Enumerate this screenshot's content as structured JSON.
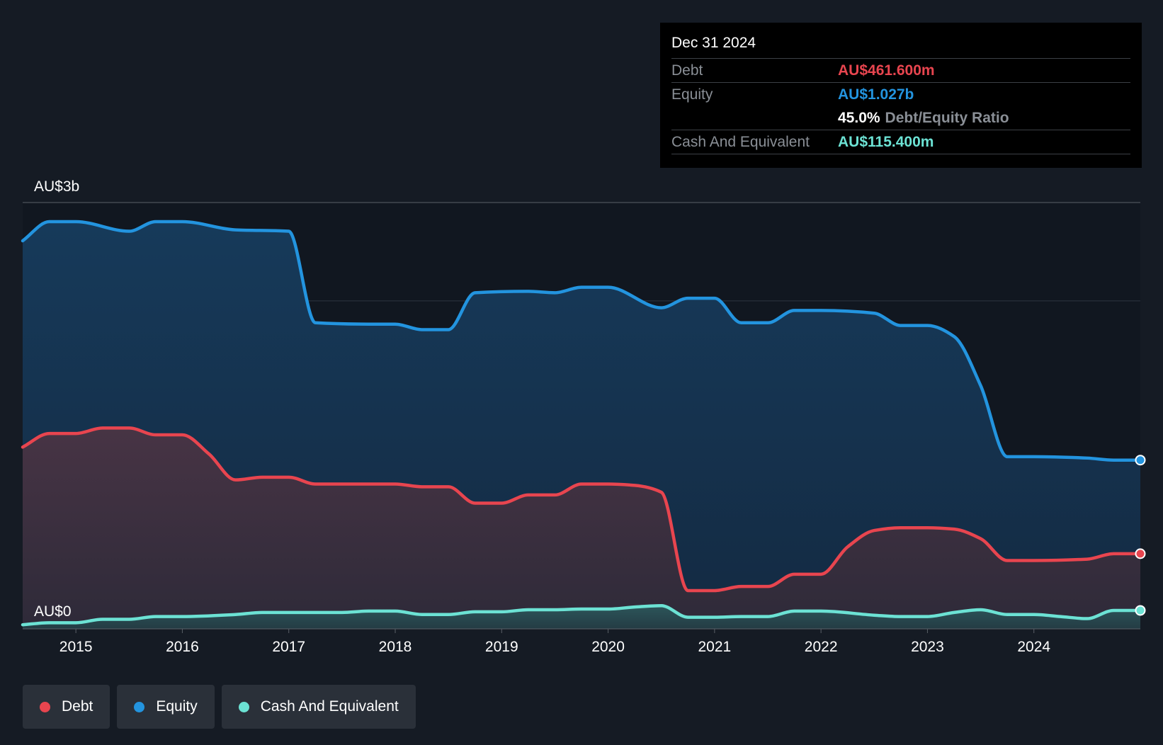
{
  "tooltip": {
    "date": "Dec 31 2024",
    "rows": [
      {
        "label": "Debt",
        "value": "AU$461.600m",
        "color": "#e8454f"
      },
      {
        "label": "Equity",
        "value": "AU$1.027b",
        "color": "#2394df"
      },
      {
        "ratio_value": "45.0%",
        "ratio_label": "Debt/Equity Ratio"
      },
      {
        "label": "Cash And Equivalent",
        "value": "AU$115.400m",
        "color": "#6ce2d4"
      }
    ]
  },
  "legend": [
    {
      "label": "Debt",
      "color": "#e8454f"
    },
    {
      "label": "Equity",
      "color": "#2394df"
    },
    {
      "label": "Cash And Equivalent",
      "color": "#6ce2d4"
    }
  ],
  "chart_data": {
    "type": "area",
    "y_top_label": "AU$3b",
    "y_bottom_label": "AU$0",
    "ylim": [
      0,
      3.12
    ],
    "xlim": [
      2014.5,
      2025.0
    ],
    "x_ticks": [
      2015,
      2016,
      2017,
      2018,
      2019,
      2020,
      2021,
      2022,
      2023,
      2024
    ],
    "x_tick_labels": [
      "2015",
      "2016",
      "2017",
      "2018",
      "2019",
      "2020",
      "2021",
      "2022",
      "2023",
      "2024"
    ],
    "y_gridlines": [
      1.2,
      2.4
    ],
    "grid": true,
    "legend_position": "bottom-left",
    "series": [
      {
        "name": "Equity",
        "color": "#2394df",
        "points": [
          [
            2014.5,
            2.84
          ],
          [
            2014.75,
            2.98
          ],
          [
            2015.0,
            2.98
          ],
          [
            2015.5,
            2.91
          ],
          [
            2015.75,
            2.98
          ],
          [
            2016.0,
            2.98
          ],
          [
            2016.5,
            2.92
          ],
          [
            2017.0,
            2.91
          ],
          [
            2017.25,
            2.24
          ],
          [
            2017.75,
            2.23
          ],
          [
            2018.0,
            2.23
          ],
          [
            2018.25,
            2.19
          ],
          [
            2018.5,
            2.19
          ],
          [
            2018.75,
            2.46
          ],
          [
            2019.25,
            2.47
          ],
          [
            2019.5,
            2.46
          ],
          [
            2019.75,
            2.5
          ],
          [
            2020.0,
            2.5
          ],
          [
            2020.5,
            2.35
          ],
          [
            2020.75,
            2.42
          ],
          [
            2021.0,
            2.42
          ],
          [
            2021.25,
            2.24
          ],
          [
            2021.5,
            2.24
          ],
          [
            2021.75,
            2.33
          ],
          [
            2022.0,
            2.33
          ],
          [
            2022.5,
            2.31
          ],
          [
            2022.75,
            2.22
          ],
          [
            2023.0,
            2.22
          ],
          [
            2023.25,
            2.14
          ],
          [
            2023.5,
            1.78
          ],
          [
            2023.75,
            1.26
          ],
          [
            2024.0,
            1.26
          ],
          [
            2024.5,
            1.25
          ],
          [
            2024.75,
            1.235
          ],
          [
            2025.0,
            1.235
          ]
        ]
      },
      {
        "name": "Debt",
        "color": "#e8454f",
        "points": [
          [
            2014.5,
            1.33
          ],
          [
            2014.75,
            1.43
          ],
          [
            2015.0,
            1.43
          ],
          [
            2015.25,
            1.47
          ],
          [
            2015.5,
            1.47
          ],
          [
            2015.75,
            1.42
          ],
          [
            2016.0,
            1.42
          ],
          [
            2016.25,
            1.28
          ],
          [
            2016.5,
            1.09
          ],
          [
            2016.75,
            1.11
          ],
          [
            2017.0,
            1.11
          ],
          [
            2017.25,
            1.06
          ],
          [
            2017.75,
            1.06
          ],
          [
            2018.0,
            1.06
          ],
          [
            2018.25,
            1.04
          ],
          [
            2018.5,
            1.04
          ],
          [
            2018.75,
            0.92
          ],
          [
            2019.0,
            0.92
          ],
          [
            2019.25,
            0.98
          ],
          [
            2019.5,
            0.98
          ],
          [
            2019.75,
            1.06
          ],
          [
            2020.0,
            1.06
          ],
          [
            2020.25,
            1.05
          ],
          [
            2020.5,
            1.0
          ],
          [
            2020.75,
            0.28
          ],
          [
            2021.0,
            0.28
          ],
          [
            2021.25,
            0.31
          ],
          [
            2021.5,
            0.31
          ],
          [
            2021.75,
            0.4
          ],
          [
            2022.0,
            0.4
          ],
          [
            2022.25,
            0.6
          ],
          [
            2022.5,
            0.72
          ],
          [
            2022.75,
            0.74
          ],
          [
            2023.0,
            0.74
          ],
          [
            2023.25,
            0.73
          ],
          [
            2023.5,
            0.66
          ],
          [
            2023.75,
            0.5
          ],
          [
            2024.0,
            0.5
          ],
          [
            2024.5,
            0.51
          ],
          [
            2024.75,
            0.55
          ],
          [
            2025.0,
            0.55
          ]
        ]
      },
      {
        "name": "Cash And Equivalent",
        "color": "#6ce2d4",
        "points": [
          [
            2014.5,
            0.03
          ],
          [
            2014.75,
            0.045
          ],
          [
            2015.0,
            0.045
          ],
          [
            2015.25,
            0.07
          ],
          [
            2015.5,
            0.07
          ],
          [
            2015.75,
            0.09
          ],
          [
            2016.0,
            0.09
          ],
          [
            2016.5,
            0.105
          ],
          [
            2016.75,
            0.12
          ],
          [
            2017.0,
            0.12
          ],
          [
            2017.5,
            0.12
          ],
          [
            2017.75,
            0.13
          ],
          [
            2018.0,
            0.13
          ],
          [
            2018.25,
            0.105
          ],
          [
            2018.5,
            0.105
          ],
          [
            2018.75,
            0.125
          ],
          [
            2019.0,
            0.125
          ],
          [
            2019.25,
            0.14
          ],
          [
            2019.5,
            0.14
          ],
          [
            2019.75,
            0.145
          ],
          [
            2020.0,
            0.145
          ],
          [
            2020.25,
            0.16
          ],
          [
            2020.5,
            0.17
          ],
          [
            2020.75,
            0.085
          ],
          [
            2021.0,
            0.085
          ],
          [
            2021.25,
            0.09
          ],
          [
            2021.5,
            0.09
          ],
          [
            2021.75,
            0.13
          ],
          [
            2022.0,
            0.13
          ],
          [
            2022.5,
            0.1
          ],
          [
            2022.75,
            0.09
          ],
          [
            2023.0,
            0.09
          ],
          [
            2023.25,
            0.12
          ],
          [
            2023.5,
            0.14
          ],
          [
            2023.75,
            0.105
          ],
          [
            2024.0,
            0.105
          ],
          [
            2024.25,
            0.09
          ],
          [
            2024.5,
            0.075
          ],
          [
            2024.75,
            0.135
          ],
          [
            2025.0,
            0.135
          ]
        ]
      }
    ]
  }
}
